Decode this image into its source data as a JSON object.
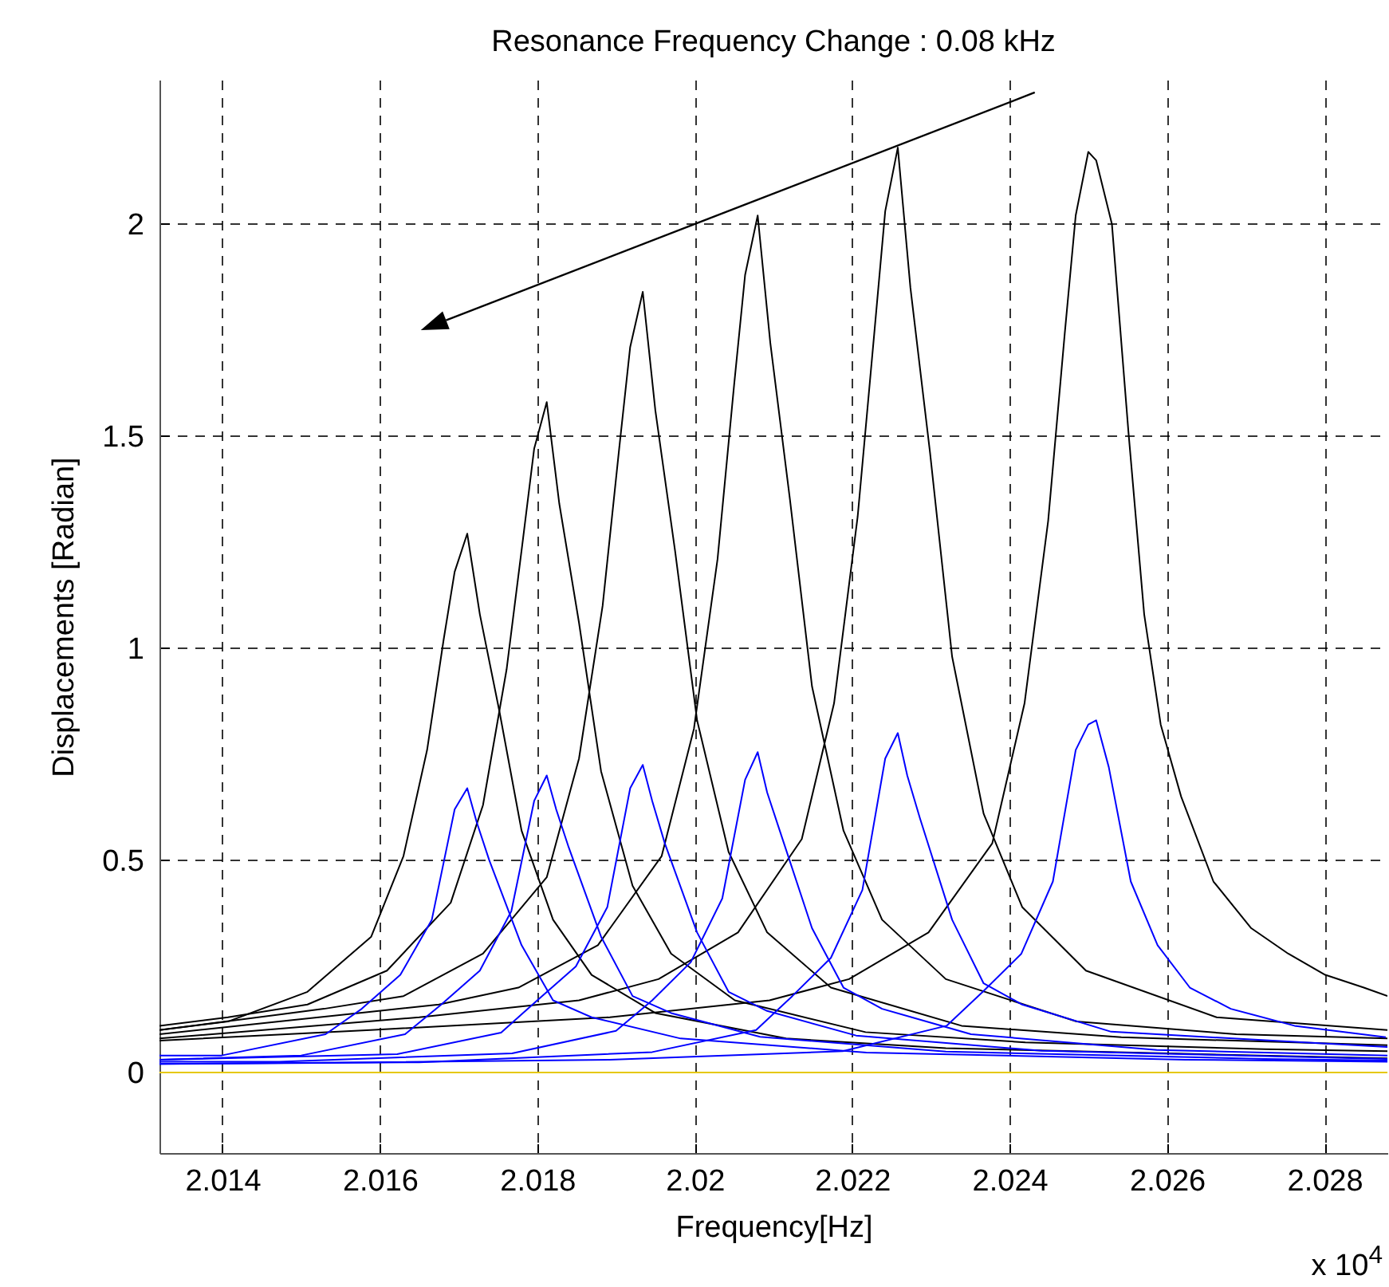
{
  "chart_data": {
    "type": "line",
    "title": "Resonance Frequency Change : 0.08 kHz",
    "xlabel": "Frequency[Hz]",
    "ylabel": "Displacements [Radian]",
    "xlim": [
      2.0132,
      2.0288
    ],
    "xticks": [
      2.014,
      2.016,
      2.018,
      2.02,
      2.022,
      2.024,
      2.026,
      2.028
    ],
    "ylim": [
      -0.19,
      2.34
    ],
    "yticks": [
      0,
      0.5,
      1,
      1.5,
      2
    ],
    "grid": true,
    "line_style": "solid",
    "marker": "none",
    "annotations": [
      "x 10$^{4}$"
    ],
    "series": [
      {
        "color": "#000000",
        "x": [
          2.0132,
          2.01407,
          2.01508,
          2.01589,
          2.0163,
          2.0166,
          2.01681,
          2.01695,
          2.01711,
          2.01727,
          2.01752,
          2.0178,
          2.0182,
          2.01869,
          2.0195,
          2.02116,
          2.02319,
          2.02623,
          2.0288
        ],
        "values": [
          0.1,
          0.12,
          0.19,
          0.32,
          0.51,
          0.76,
          1.02,
          1.18,
          1.27,
          1.08,
          0.85,
          0.57,
          0.36,
          0.23,
          0.14,
          0.08,
          0.057,
          0.044,
          0.033
        ]
      },
      {
        "color": "#000000",
        "x": [
          2.0132,
          2.01407,
          2.01508,
          2.01609,
          2.0169,
          2.01731,
          2.01761,
          2.01782,
          2.01796,
          2.01812,
          2.01828,
          2.01853,
          2.01881,
          2.01921,
          2.0197,
          2.02051,
          2.02217,
          2.0242,
          2.02724,
          2.0288
        ],
        "values": [
          0.11,
          0.13,
          0.16,
          0.24,
          0.4,
          0.63,
          0.95,
          1.26,
          1.47,
          1.58,
          1.34,
          1.06,
          0.71,
          0.44,
          0.28,
          0.17,
          0.095,
          0.071,
          0.055,
          0.05
        ]
      },
      {
        "color": "#000000",
        "x": [
          2.0132,
          2.01529,
          2.0163,
          2.01731,
          2.01812,
          2.01853,
          2.01883,
          2.01904,
          2.01918,
          2.01934,
          2.0195,
          2.01975,
          2.02003,
          2.02043,
          2.02092,
          2.02173,
          2.02339,
          2.02542,
          2.0288
        ],
        "values": [
          0.1,
          0.15,
          0.18,
          0.28,
          0.46,
          0.74,
          1.1,
          1.47,
          1.71,
          1.84,
          1.56,
          1.23,
          0.83,
          0.52,
          0.33,
          0.2,
          0.11,
          0.083,
          0.064
        ]
      },
      {
        "color": "#000000",
        "x": [
          2.0132,
          2.01472,
          2.01675,
          2.01776,
          2.01877,
          2.01958,
          2.01999,
          2.02029,
          2.0205,
          2.02064,
          2.0208,
          2.02096,
          2.02121,
          2.02149,
          2.02189,
          2.02238,
          2.02319,
          2.02485,
          2.02688,
          2.0288
        ],
        "values": [
          0.09,
          0.12,
          0.16,
          0.2,
          0.3,
          0.51,
          0.81,
          1.21,
          1.62,
          1.88,
          2.02,
          1.72,
          1.35,
          0.91,
          0.57,
          0.36,
          0.22,
          0.12,
          0.09,
          0.08
        ]
      },
      {
        "color": "#000000",
        "x": [
          2.0132,
          2.0165,
          2.01853,
          2.01954,
          2.02055,
          2.02136,
          2.02177,
          2.02207,
          2.02228,
          2.02242,
          2.02258,
          2.02274,
          2.02299,
          2.02327,
          2.02367,
          2.02416,
          2.02497,
          2.02663,
          2.0288
        ],
        "values": [
          0.08,
          0.13,
          0.17,
          0.22,
          0.33,
          0.55,
          0.87,
          1.31,
          1.74,
          2.03,
          2.18,
          1.85,
          1.46,
          0.98,
          0.61,
          0.39,
          0.24,
          0.13,
          0.1
        ]
      },
      {
        "color": "#000000",
        "x": [
          2.0132,
          2.01588,
          2.01892,
          2.02095,
          2.02196,
          2.02297,
          2.02378,
          2.02419,
          2.02449,
          2.0247,
          2.02484,
          2.025,
          2.0251,
          2.0253,
          2.02551,
          2.02571,
          2.02592,
          2.02618,
          2.02659,
          2.02707,
          2.02754,
          2.02801,
          2.0285,
          2.0288
        ],
        "values": [
          0.075,
          0.1,
          0.13,
          0.17,
          0.22,
          0.33,
          0.54,
          0.87,
          1.3,
          1.74,
          2.02,
          2.17,
          2.15,
          2.0,
          1.51,
          1.08,
          0.82,
          0.65,
          0.45,
          0.34,
          0.28,
          0.23,
          0.2,
          0.18
        ]
      },
      {
        "color": "#0000ff",
        "x": [
          2.0132,
          2.01399,
          2.01531,
          2.01577,
          2.01626,
          2.01666,
          2.01695,
          2.01711,
          2.01723,
          2.01739,
          2.0178,
          2.0182,
          2.01869,
          2.01982,
          2.02218,
          2.02623,
          2.0288
        ],
        "values": [
          0.04,
          0.04,
          0.09,
          0.15,
          0.23,
          0.36,
          0.62,
          0.67,
          0.59,
          0.5,
          0.3,
          0.17,
          0.13,
          0.08,
          0.047,
          0.03,
          0.025
        ]
      },
      {
        "color": "#0000ff",
        "x": [
          2.0132,
          2.015,
          2.01632,
          2.01678,
          2.01727,
          2.01767,
          2.01796,
          2.01812,
          2.01824,
          2.0184,
          2.01881,
          2.01921,
          2.0197,
          2.02083,
          2.02319,
          2.02724,
          2.0288
        ],
        "values": [
          0.03,
          0.04,
          0.09,
          0.16,
          0.24,
          0.38,
          0.64,
          0.7,
          0.62,
          0.53,
          0.32,
          0.18,
          0.14,
          0.084,
          0.049,
          0.032,
          0.028
        ]
      },
      {
        "color": "#0000ff",
        "x": [
          2.0132,
          2.01622,
          2.01754,
          2.018,
          2.01849,
          2.01889,
          2.01918,
          2.01934,
          2.01946,
          2.01962,
          2.02003,
          2.02043,
          2.02092,
          2.02205,
          2.02441,
          2.02846,
          2.0288
        ],
        "values": [
          0.03,
          0.043,
          0.094,
          0.17,
          0.25,
          0.39,
          0.67,
          0.725,
          0.64,
          0.54,
          0.33,
          0.19,
          0.145,
          0.087,
          0.051,
          0.033,
          0.032
        ]
      },
      {
        "color": "#0000ff",
        "x": [
          2.0132,
          2.01472,
          2.01768,
          2.019,
          2.01946,
          2.01995,
          2.02035,
          2.02064,
          2.0208,
          2.02092,
          2.02108,
          2.02149,
          2.02189,
          2.02238,
          2.02351,
          2.02587,
          2.0288
        ],
        "values": [
          0.025,
          0.025,
          0.045,
          0.098,
          0.17,
          0.26,
          0.41,
          0.69,
          0.755,
          0.66,
          0.57,
          0.34,
          0.2,
          0.15,
          0.09,
          0.053,
          0.04
        ]
      },
      {
        "color": "#0000ff",
        "x": [
          2.0132,
          2.0165,
          2.01946,
          2.02078,
          2.02124,
          2.02173,
          2.02213,
          2.02242,
          2.02258,
          2.0227,
          2.02286,
          2.02327,
          2.02367,
          2.02416,
          2.02529,
          2.0288
        ],
        "values": [
          0.02,
          0.024,
          0.048,
          0.1,
          0.18,
          0.27,
          0.43,
          0.74,
          0.8,
          0.7,
          0.6,
          0.36,
          0.21,
          0.16,
          0.096,
          0.06
        ]
      },
      {
        "color": "#0000ff",
        "x": [
          2.0132,
          2.01588,
          2.01892,
          2.02188,
          2.0232,
          2.02366,
          2.02415,
          2.02455,
          2.02484,
          2.025,
          2.0251,
          2.02526,
          2.02554,
          2.02588,
          2.02629,
          2.02681,
          2.02762,
          2.02878
        ],
        "values": [
          0.02,
          0.024,
          0.03,
          0.05,
          0.11,
          0.19,
          0.28,
          0.45,
          0.76,
          0.82,
          0.83,
          0.72,
          0.45,
          0.3,
          0.2,
          0.15,
          0.11,
          0.083
        ]
      },
      {
        "color": "#e6c800",
        "x": [
          2.0132,
          2.0288
        ],
        "values": [
          0,
          0
        ]
      }
    ]
  }
}
